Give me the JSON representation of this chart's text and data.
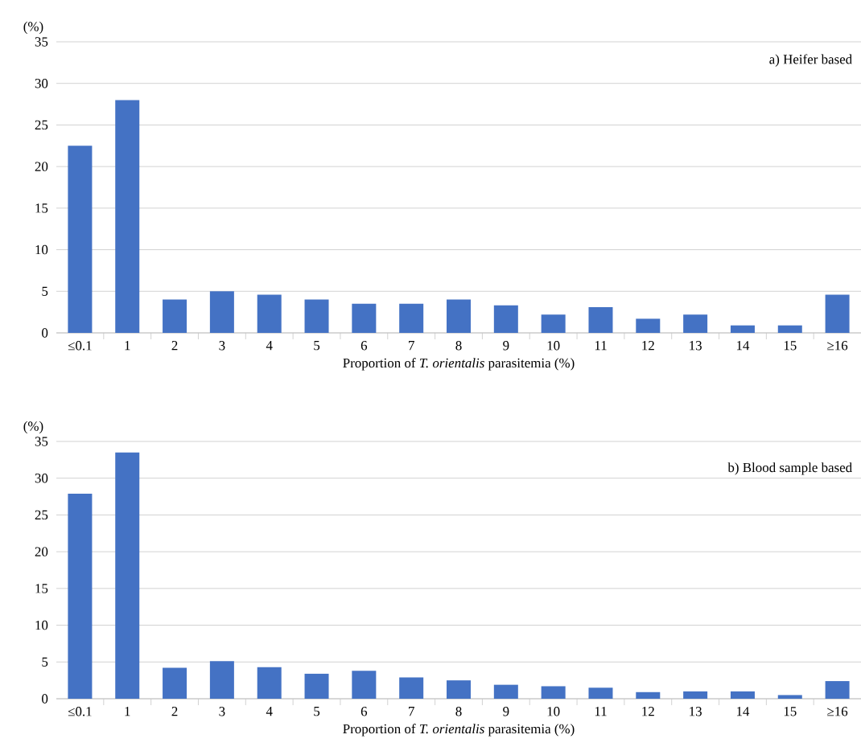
{
  "chart_data": [
    {
      "type": "bar",
      "title": "a) Heifer based",
      "xlabel": "Proportion of *T. orientalis* parasitemia (%)",
      "ylabel": "(%)",
      "categories": [
        "≤0.1",
        "1",
        "2",
        "3",
        "4",
        "5",
        "6",
        "7",
        "8",
        "9",
        "10",
        "11",
        "12",
        "13",
        "14",
        "15",
        "≥16"
      ],
      "values": [
        22.5,
        28.0,
        4.0,
        5.0,
        4.6,
        4.0,
        3.5,
        3.5,
        4.0,
        3.3,
        2.2,
        3.1,
        1.7,
        2.2,
        0.9,
        0.9,
        4.6
      ],
      "color": "#4472c4",
      "ylim": [
        0,
        35
      ],
      "yticks": [
        0,
        5,
        10,
        15,
        20,
        25,
        30,
        35
      ],
      "grid": "y"
    },
    {
      "type": "bar",
      "title": "b) Blood sample based",
      "xlabel": "Proportion of *T. orientalis* parasitemia (%)",
      "ylabel": "(%)",
      "categories": [
        "≤0.1",
        "1",
        "2",
        "3",
        "4",
        "5",
        "6",
        "7",
        "8",
        "9",
        "10",
        "11",
        "12",
        "13",
        "14",
        "15",
        "≥16"
      ],
      "values": [
        27.9,
        33.5,
        4.2,
        5.1,
        4.3,
        3.4,
        3.8,
        2.9,
        2.5,
        1.9,
        1.7,
        1.5,
        0.9,
        1.0,
        1.0,
        0.5,
        2.4
      ],
      "color": "#4472c4",
      "ylim": [
        0,
        35
      ],
      "yticks": [
        0,
        5,
        10,
        15,
        20,
        25,
        30,
        35
      ],
      "grid": "y"
    }
  ]
}
